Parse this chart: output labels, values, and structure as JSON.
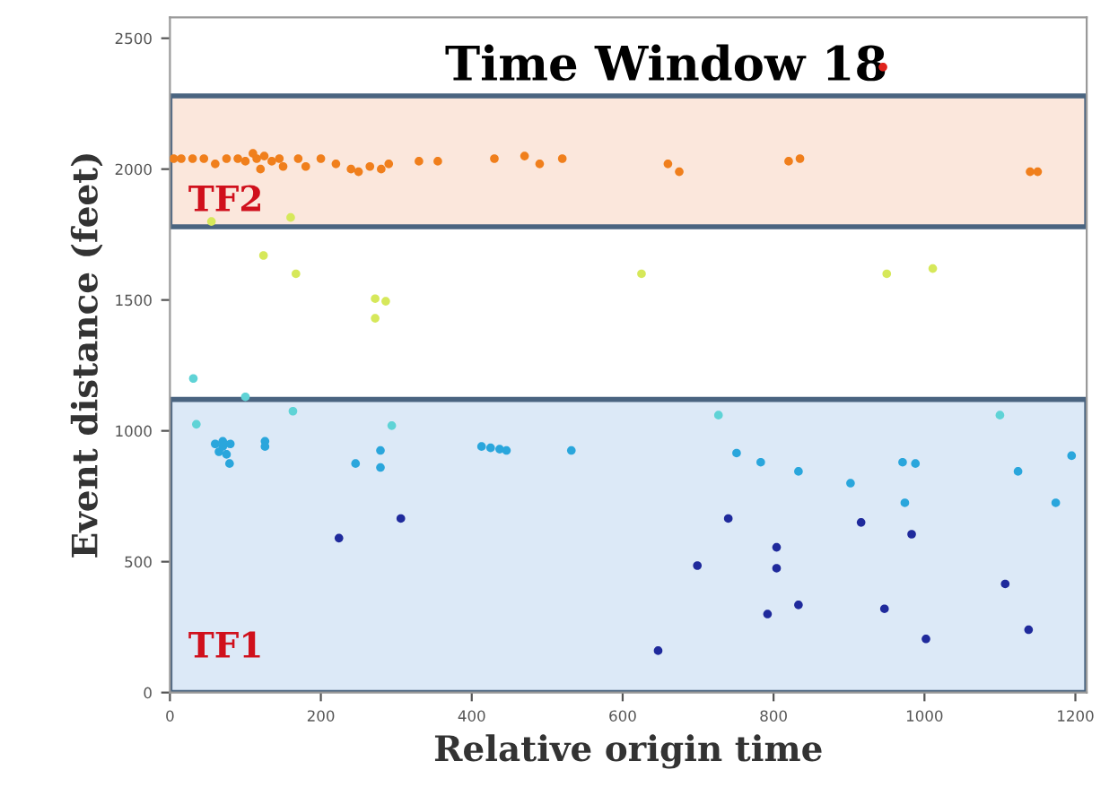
{
  "chart_data": {
    "type": "scatter",
    "title": "Time Window 18",
    "xlabel": "Relative origin time",
    "ylabel": "Event distance (feet)",
    "xlim": [
      0,
      1215
    ],
    "ylim": [
      0,
      2580
    ],
    "xticks": [
      0,
      200,
      400,
      600,
      800,
      1000,
      1200
    ],
    "yticks": [
      0,
      500,
      1000,
      1500,
      2000,
      2500
    ],
    "grid": false,
    "marker": "circle",
    "bands": [
      {
        "axis": "y",
        "from": 0,
        "to": 1120,
        "label": "TF1",
        "color": "#dce9f7"
      },
      {
        "axis": "y",
        "from": 1780,
        "to": 2280,
        "label": "TF2",
        "color": "#fbe7dc"
      }
    ],
    "series": [
      {
        "color": "#f07f1c",
        "x": [
          5,
          15,
          30,
          45,
          60,
          75,
          90,
          100,
          110,
          115,
          120,
          125,
          135,
          145,
          150,
          170,
          180,
          200,
          220,
          240,
          250,
          265,
          280,
          290,
          330,
          355,
          430,
          470,
          490,
          520,
          660,
          675,
          820,
          835,
          1140,
          1150
        ],
        "values": [
          2040,
          2040,
          2040,
          2040,
          2020,
          2040,
          2040,
          2030,
          2060,
          2040,
          2000,
          2050,
          2030,
          2040,
          2010,
          2040,
          2010,
          2040,
          2020,
          2000,
          1990,
          2010,
          2000,
          2020,
          2030,
          2030,
          2040,
          2050,
          2020,
          2040,
          2020,
          1990,
          2030,
          2040,
          1990,
          1990
        ]
      },
      {
        "color": "#e0221c",
        "x": [
          945
        ],
        "values": [
          2390
        ]
      },
      {
        "color": "#d6e85a",
        "x": [
          55,
          160,
          124,
          167,
          272,
          286,
          272,
          625,
          950,
          1011
        ],
        "values": [
          1800,
          1815,
          1670,
          1600,
          1505,
          1495,
          1430,
          1600,
          1600,
          1620
        ]
      },
      {
        "color": "#5fd3d6",
        "x": [
          31,
          100,
          163,
          35,
          294,
          727,
          1100
        ],
        "values": [
          1200,
          1130,
          1075,
          1025,
          1020,
          1060,
          1060
        ]
      },
      {
        "color": "#2aa6dc",
        "x": [
          60,
          65,
          70,
          75,
          80,
          70,
          79,
          126,
          126,
          246,
          279,
          279,
          413,
          425,
          437,
          446,
          532,
          751,
          783,
          833,
          902,
          971,
          988,
          974,
          1124,
          1195,
          1174
        ],
        "values": [
          950,
          920,
          940,
          910,
          950,
          960,
          875,
          960,
          940,
          875,
          925,
          860,
          940,
          935,
          930,
          925,
          925,
          915,
          880,
          845,
          800,
          880,
          875,
          725,
          845,
          905,
          725
        ]
      },
      {
        "color": "#1f2a9c",
        "x": [
          224,
          306,
          740,
          916,
          983,
          804,
          699,
          804,
          1107,
          833,
          792,
          947,
          1138,
          1002,
          647
        ],
        "values": [
          590,
          665,
          665,
          650,
          605,
          555,
          485,
          475,
          415,
          335,
          300,
          320,
          240,
          205,
          160
        ]
      }
    ]
  }
}
